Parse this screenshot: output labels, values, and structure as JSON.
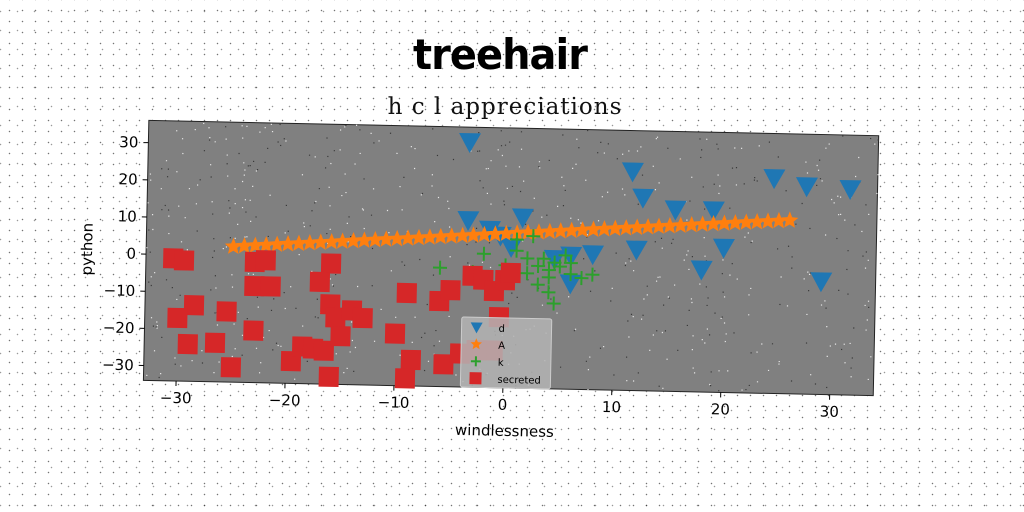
{
  "chart_data": {
    "type": "scatter",
    "title": "treehair",
    "subtitle": "h c l appreciations",
    "xlabel": "windlessness",
    "ylabel": "python",
    "xlim": [
      -33,
      34
    ],
    "ylim": [
      -34,
      36
    ],
    "xticks": [
      -30,
      -20,
      -10,
      0,
      10,
      20,
      30
    ],
    "yticks": [
      -30,
      -20,
      -10,
      0,
      10,
      20,
      30
    ],
    "grid": false,
    "legend_position": "lower-center",
    "background": "#808080",
    "series": [
      {
        "name": "d",
        "marker": "triangle-down",
        "color": "#1f77b4",
        "points": [
          [
            -3.5,
            32
          ],
          [
            11.5,
            25
          ],
          [
            12.5,
            18
          ],
          [
            24.5,
            24
          ],
          [
            27.5,
            22
          ],
          [
            31.5,
            21.5
          ],
          [
            15.5,
            15
          ],
          [
            19,
            15
          ],
          [
            -3.5,
            11
          ],
          [
            -1.5,
            8.5
          ],
          [
            1.5,
            12
          ],
          [
            20,
            5
          ],
          [
            12,
            4
          ],
          [
            8,
            2.5
          ],
          [
            6,
            2
          ],
          [
            4.5,
            1
          ],
          [
            18,
            -1
          ],
          [
            6,
            -5.5
          ],
          [
            29,
            -3.5
          ],
          [
            -0.5,
            7
          ],
          [
            0.5,
            4
          ]
        ]
      },
      {
        "name": "A",
        "marker": "star",
        "color": "#ff7f0e",
        "points": [
          [
            -25,
            2.5
          ],
          [
            -24,
            2.7
          ],
          [
            -23,
            2.9
          ],
          [
            -22,
            3.1
          ],
          [
            -21,
            3.3
          ],
          [
            -20,
            3.5
          ],
          [
            -19,
            3.7
          ],
          [
            -18,
            3.9
          ],
          [
            -17,
            4.1
          ],
          [
            -16,
            4.3
          ],
          [
            -15,
            4.5
          ],
          [
            -14,
            4.7
          ],
          [
            -13,
            4.9
          ],
          [
            -12,
            5.1
          ],
          [
            -11,
            5.3
          ],
          [
            -10,
            5.5
          ],
          [
            -9,
            5.7
          ],
          [
            -8,
            5.9
          ],
          [
            -7,
            6.1
          ],
          [
            -6,
            6.3
          ],
          [
            -5,
            6.5
          ],
          [
            -4,
            6.7
          ],
          [
            -3,
            6.9
          ],
          [
            -2,
            7.1
          ],
          [
            -1,
            7.3
          ],
          [
            0,
            7.5
          ],
          [
            1,
            7.7
          ],
          [
            2,
            7.9
          ],
          [
            3,
            8.1
          ],
          [
            4,
            8.3
          ],
          [
            5,
            8.5
          ],
          [
            6,
            8.7
          ],
          [
            7,
            8.9
          ],
          [
            8,
            9.1
          ],
          [
            9,
            9.3
          ],
          [
            10,
            9.5
          ],
          [
            11,
            9.7
          ],
          [
            12,
            9.9
          ],
          [
            13,
            10.1
          ],
          [
            14,
            10.3
          ],
          [
            15,
            10.5
          ],
          [
            16,
            10.7
          ],
          [
            17,
            10.9
          ],
          [
            18,
            11.1
          ],
          [
            19,
            11.3
          ],
          [
            20,
            11.5
          ],
          [
            21,
            11.7
          ],
          [
            22,
            11.9
          ],
          [
            23,
            12.1
          ],
          [
            24,
            12.3
          ],
          [
            25,
            12.5
          ],
          [
            26,
            12.7
          ]
        ]
      },
      {
        "name": "k",
        "marker": "plus",
        "color": "#2ca02c",
        "points": [
          [
            -6,
            -2
          ],
          [
            -3,
            -3
          ],
          [
            -2,
            2
          ],
          [
            0,
            -1
          ],
          [
            1,
            3
          ],
          [
            1,
            6
          ],
          [
            2,
            -3
          ],
          [
            2.5,
            7
          ],
          [
            3,
            -6
          ],
          [
            3.5,
            1
          ],
          [
            4,
            -4
          ],
          [
            4,
            -2
          ],
          [
            4.5,
            0
          ],
          [
            5,
            -1
          ],
          [
            5.5,
            2
          ],
          [
            6,
            -3
          ],
          [
            4,
            -8
          ],
          [
            4.5,
            -11
          ],
          [
            6,
            0
          ],
          [
            7,
            -4
          ],
          [
            8,
            -3
          ],
          [
            2,
            1
          ],
          [
            3,
            -1
          ]
        ]
      },
      {
        "name": "secreted",
        "marker": "square",
        "color": "#d62728",
        "points": [
          [
            -30.5,
            -1
          ],
          [
            -29.5,
            -1.5
          ],
          [
            -28.5,
            -13.5
          ],
          [
            -30,
            -17
          ],
          [
            -29,
            -24
          ],
          [
            -26.5,
            -23.5
          ],
          [
            -25.5,
            -15
          ],
          [
            -25,
            -30
          ],
          [
            -23,
            -1.5
          ],
          [
            -22,
            -1
          ],
          [
            -23,
            -8
          ],
          [
            -21.5,
            -8
          ],
          [
            -23,
            -20
          ],
          [
            -19.5,
            -28
          ],
          [
            -18.5,
            -24
          ],
          [
            -17.5,
            -24.5
          ],
          [
            -16.5,
            -25
          ],
          [
            -16,
            -32
          ],
          [
            -16,
            -1.5
          ],
          [
            -17,
            -6.5
          ],
          [
            -16,
            -12.5
          ],
          [
            -15.5,
            -16
          ],
          [
            -15,
            -21
          ],
          [
            -14,
            -14
          ],
          [
            -13,
            -16
          ],
          [
            -9,
            -9
          ],
          [
            -10,
            -20
          ],
          [
            -8.5,
            -27
          ],
          [
            -9,
            -32
          ],
          [
            -6,
            -11
          ],
          [
            -5,
            -8
          ],
          [
            -5.5,
            -28
          ],
          [
            -4,
            -25
          ],
          [
            -3,
            -4
          ],
          [
            -2,
            -5
          ],
          [
            -1,
            -8
          ],
          [
            -0.5,
            -15
          ],
          [
            -1,
            -24
          ],
          [
            0,
            -5
          ],
          [
            0.5,
            -3
          ],
          [
            -2.5,
            -24
          ]
        ]
      }
    ]
  }
}
